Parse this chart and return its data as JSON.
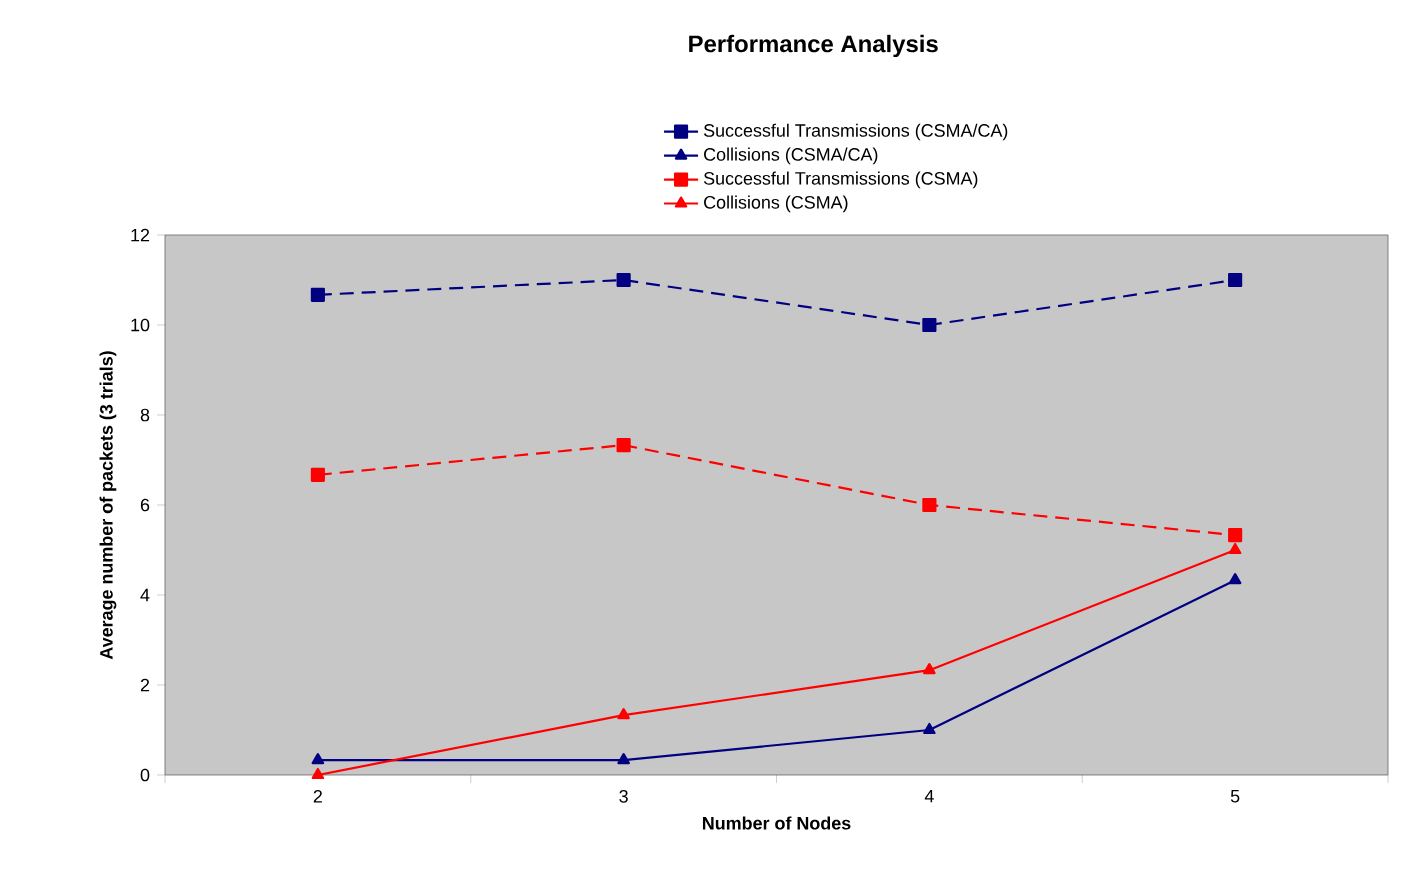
{
  "chart_data": {
    "type": "line",
    "title": "Performance Analysis",
    "xlabel": "Number of Nodes",
    "ylabel": "Average number of packets (3 trials)",
    "categories": [
      "2",
      "3",
      "4",
      "5"
    ],
    "ylim": [
      0,
      12
    ],
    "yticks": [
      0,
      2,
      4,
      6,
      8,
      10,
      12
    ],
    "legend": "top",
    "series": [
      {
        "name": "Successful Transmissions (CSMA/CA)",
        "color": "#000080",
        "marker": "square",
        "line_style": "dashed",
        "values": [
          10.67,
          11,
          10,
          11
        ]
      },
      {
        "name": "Collisions (CSMA/CA)",
        "color": "#000080",
        "marker": "triangle",
        "line_style": "solid",
        "values": [
          0.33,
          0.33,
          1,
          4.33
        ]
      },
      {
        "name": "Successful Transmissions (CSMA)",
        "color": "#ff0000",
        "marker": "square",
        "line_style": "dashed",
        "values": [
          6.67,
          7.33,
          6,
          5.33
        ]
      },
      {
        "name": "Collisions (CSMA)",
        "color": "#ff0000",
        "marker": "triangle",
        "line_style": "solid",
        "values": [
          0,
          1.33,
          2.33,
          5
        ]
      }
    ]
  }
}
